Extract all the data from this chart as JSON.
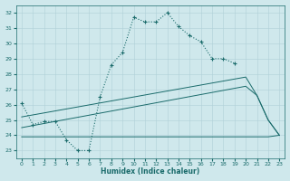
{
  "title": "",
  "xlabel": "Humidex (Indice chaleur)",
  "xlim": [
    -0.5,
    23.5
  ],
  "ylim": [
    22.5,
    32.5
  ],
  "xticks": [
    0,
    1,
    2,
    3,
    4,
    5,
    6,
    7,
    8,
    9,
    10,
    11,
    12,
    13,
    14,
    15,
    16,
    17,
    18,
    19,
    20,
    21,
    22,
    23
  ],
  "yticks": [
    23,
    24,
    25,
    26,
    27,
    28,
    29,
    30,
    31,
    32
  ],
  "bg_color": "#cfe8ec",
  "grid_color": "#b0d0d8",
  "line_color": "#1a6b6b",
  "line1_x": [
    0,
    1,
    2,
    3,
    4,
    5,
    6,
    7,
    8,
    9,
    10,
    11,
    12,
    13,
    14,
    15,
    16,
    17,
    18,
    19
  ],
  "line1_y": [
    26.1,
    24.7,
    24.9,
    24.9,
    23.7,
    23.0,
    23.0,
    26.5,
    28.6,
    29.4,
    31.7,
    31.4,
    31.4,
    32.0,
    31.1,
    30.5,
    30.1,
    29.0,
    29.0,
    28.7
  ],
  "line2_x": [
    0,
    22,
    23
  ],
  "line2_y": [
    23.9,
    23.9,
    24.0
  ],
  "line3_x": [
    0,
    20,
    21,
    22,
    23
  ],
  "line3_y": [
    24.5,
    27.2,
    26.6,
    25.0,
    24.0
  ],
  "line4_x": [
    0,
    20,
    21,
    22,
    23
  ],
  "line4_y": [
    25.2,
    27.8,
    26.6,
    25.0,
    24.0
  ]
}
